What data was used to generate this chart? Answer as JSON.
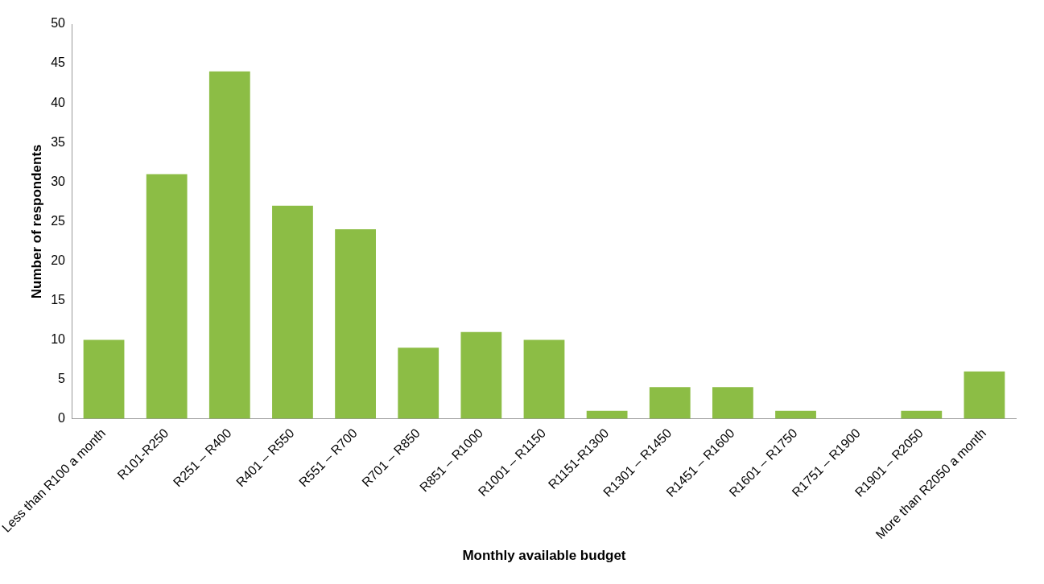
{
  "chart_data": {
    "type": "bar",
    "xlabel": "Monthly available budget",
    "ylabel": "Number of respondents",
    "categories": [
      "Less than R100 a month",
      "R101-R250",
      "R251 – R400",
      "R401 – R550",
      "R551 – R700",
      "R701 – R850",
      "R851 – R1000",
      "R1001 – R1150",
      "R1151-R1300",
      "R1301 – R1450",
      "R1451 – R1600",
      "R1601 – R1750",
      "R1751 – R1900",
      "R1901 – R2050",
      "More than R2050 a month"
    ],
    "values": [
      10,
      31,
      44,
      27,
      24,
      9,
      11,
      10,
      1,
      4,
      4,
      1,
      0,
      1,
      6
    ],
    "color": "#8cbd45",
    "ylim": [
      0,
      50
    ],
    "yticks": [
      0,
      5,
      10,
      15,
      20,
      25,
      30,
      35,
      40,
      45,
      50
    ],
    "grid": false,
    "legend": false
  }
}
